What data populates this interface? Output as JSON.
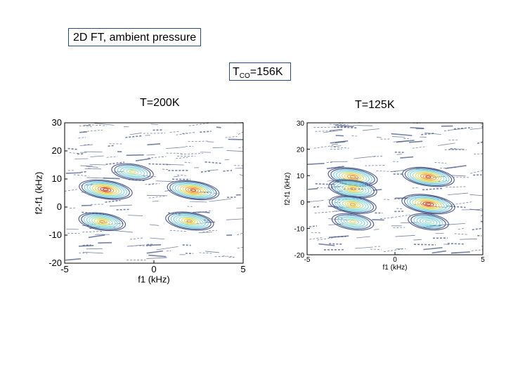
{
  "slide": {
    "title": "2D FT, ambient pressure",
    "tco_prefix": "T",
    "tco_sub": "CO",
    "tco_suffix": "=156K"
  },
  "colors": {
    "contour_low": "#4a5a86",
    "contour_mid": "#7fd0e6",
    "contour_warm": "#e8d860",
    "contour_hot": "#c94a2a",
    "box_border": "#2b4a8a"
  },
  "chart_data": [
    {
      "type": "contour",
      "title": "T=200K",
      "xlabel": "f1 (kHz)",
      "ylabel": "f2-f1 (kHz)",
      "xlim": [
        -5,
        5
      ],
      "ylim": [
        -20,
        30
      ],
      "xticks": [
        "-5",
        "0",
        "5"
      ],
      "yticks": [
        "-20",
        "-10",
        "0",
        "10",
        "20",
        "30"
      ],
      "peaks": [
        {
          "x": -1.2,
          "y": 12.5,
          "intensity": 0.55
        },
        {
          "x": -2.7,
          "y": 6.2,
          "intensity": 1.0
        },
        {
          "x": 2.2,
          "y": 6.0,
          "intensity": 0.95
        },
        {
          "x": -2.9,
          "y": -5.2,
          "intensity": 0.75
        },
        {
          "x": 2.0,
          "y": -5.0,
          "intensity": 0.8
        }
      ]
    },
    {
      "type": "contour",
      "title": "T=125K",
      "xlabel": "f1 (kHz)",
      "ylabel": "f2-f1 (kHz)",
      "xlim": [
        -5,
        5
      ],
      "ylim": [
        -20,
        30
      ],
      "xticks": [
        "-5",
        "0",
        "5"
      ],
      "yticks": [
        "-20",
        "-10",
        "0",
        "10",
        "20",
        "30"
      ],
      "peaks": [
        {
          "x": -2.4,
          "y": 9.5,
          "intensity": 0.85
        },
        {
          "x": -2.4,
          "y": 5.0,
          "intensity": 0.8
        },
        {
          "x": -2.4,
          "y": -1.0,
          "intensity": 0.75
        },
        {
          "x": -2.4,
          "y": -7.5,
          "intensity": 0.55
        },
        {
          "x": 1.9,
          "y": 9.5,
          "intensity": 0.95
        },
        {
          "x": 1.9,
          "y": -0.8,
          "intensity": 1.0
        },
        {
          "x": 1.9,
          "y": -7.5,
          "intensity": 0.5
        }
      ]
    }
  ]
}
